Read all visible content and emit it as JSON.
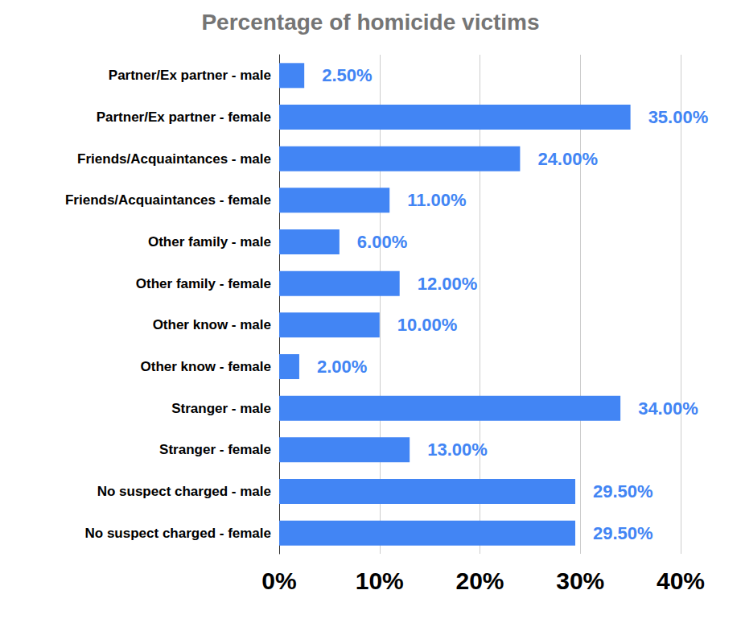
{
  "chart_data": {
    "type": "bar",
    "title": "Percentage of homicide victims",
    "orientation": "horizontal",
    "categories": [
      "Partner/Ex partner - male",
      "Partner/Ex partner - female",
      "Friends/Acquaintances - male",
      "Friends/Acquaintances - female",
      "Other family - male",
      "Other family - female",
      "Other know - male",
      "Other know - female",
      "Stranger - male",
      "Stranger - female",
      "No suspect charged - male",
      "No suspect charged - female"
    ],
    "values": [
      2.5,
      35,
      24,
      11,
      6,
      12,
      10,
      2,
      34,
      13,
      29.5,
      29.5
    ],
    "value_labels": [
      "2.50%",
      "35.00%",
      "24.00%",
      "11.00%",
      "6.00%",
      "12.00%",
      "10.00%",
      "2.00%",
      "34.00%",
      "13.00%",
      "29.50%",
      "29.50%"
    ],
    "color": "#4285f4",
    "xlim": [
      0,
      40
    ],
    "xticks": [
      {
        "value": 0,
        "label": "0%"
      },
      {
        "value": 10,
        "label": "10%"
      },
      {
        "value": 20,
        "label": "20%"
      },
      {
        "value": 30,
        "label": "30%"
      },
      {
        "value": 40,
        "label": "40%"
      }
    ],
    "grid": true,
    "data_labels": true
  }
}
